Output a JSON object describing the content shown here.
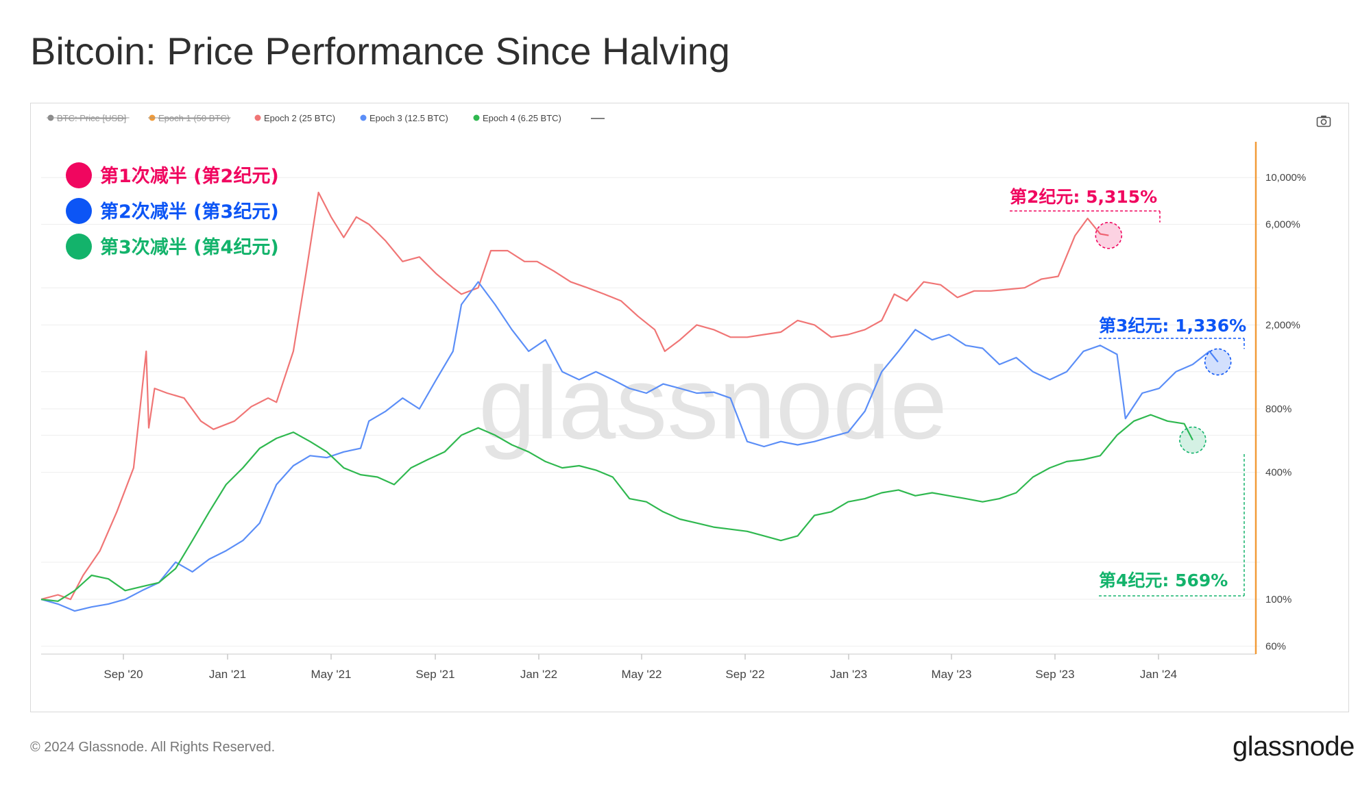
{
  "title": "Bitcoin: Price Performance Since Halving",
  "footer": {
    "copyright": "© 2024 Glassnode. All Rights Reserved.",
    "logo": "glassnode"
  },
  "watermark": "glassnode",
  "toolbar": {
    "camera_icon": "camera-icon"
  },
  "colors": {
    "epoch2": "#f07575",
    "epoch3": "#5b8ef7",
    "epoch4": "#2fb84f",
    "price": "#8a8a8a",
    "epoch1": "#f29b38",
    "highlight_pink": "#f0065f",
    "highlight_blue": "#0c55f5",
    "highlight_green": "#13b36b",
    "axis_orange": "#f29b38"
  },
  "chart_data": {
    "type": "line",
    "title": "Bitcoin: Price Performance Since Halving",
    "y_scale": "log",
    "ylim": [
      55,
      15000
    ],
    "xlabel": "",
    "ylabel": "",
    "x_ticks": [
      "Sep '20",
      "Jan '21",
      "May '21",
      "Sep '21",
      "Jan '22",
      "May '22",
      "Sep '22",
      "Jan '23",
      "May '23",
      "Sep '23",
      "Jan '24"
    ],
    "y_ticks": [
      {
        "value": 10000,
        "label": "10,000%"
      },
      {
        "value": 6000,
        "label": "6,000%"
      },
      {
        "value": 2000,
        "label": "2,000%"
      },
      {
        "value": 800,
        "label": "800%"
      },
      {
        "value": 400,
        "label": "400%"
      },
      {
        "value": 100,
        "label": "100%"
      },
      {
        "value": 60,
        "label": "60%"
      }
    ],
    "legend": [
      {
        "label": "BTC: Price [USD]",
        "hidden": true
      },
      {
        "label": "Epoch 1 (50 BTC)",
        "hidden": true
      },
      {
        "label": "Epoch 2 (25 BTC)",
        "hidden": false
      },
      {
        "label": "Epoch 3 (12.5 BTC)",
        "hidden": false
      },
      {
        "label": "Epoch 4 (6.25 BTC)",
        "hidden": false
      }
    ],
    "x_days_max": 1450,
    "series": [
      {
        "name": "Epoch 2 (25 BTC)",
        "points": [
          [
            0,
            100
          ],
          [
            20,
            105
          ],
          [
            35,
            100
          ],
          [
            50,
            130
          ],
          [
            70,
            170
          ],
          [
            90,
            260
          ],
          [
            110,
            420
          ],
          [
            125,
            1500
          ],
          [
            128,
            650
          ],
          [
            135,
            1000
          ],
          [
            150,
            950
          ],
          [
            170,
            900
          ],
          [
            190,
            700
          ],
          [
            205,
            640
          ],
          [
            230,
            700
          ],
          [
            250,
            820
          ],
          [
            270,
            900
          ],
          [
            280,
            860
          ],
          [
            300,
            1500
          ],
          [
            315,
            3500
          ],
          [
            330,
            8500
          ],
          [
            345,
            6500
          ],
          [
            360,
            5200
          ],
          [
            375,
            6500
          ],
          [
            390,
            6000
          ],
          [
            410,
            5000
          ],
          [
            430,
            4000
          ],
          [
            450,
            4200
          ],
          [
            470,
            3500
          ],
          [
            490,
            3000
          ],
          [
            500,
            2800
          ],
          [
            520,
            3000
          ],
          [
            535,
            4500
          ],
          [
            555,
            4500
          ],
          [
            575,
            4000
          ],
          [
            590,
            4000
          ],
          [
            610,
            3600
          ],
          [
            630,
            3200
          ],
          [
            650,
            3000
          ],
          [
            670,
            2800
          ],
          [
            690,
            2600
          ],
          [
            710,
            2200
          ],
          [
            730,
            1900
          ],
          [
            742,
            1500
          ],
          [
            760,
            1700
          ],
          [
            780,
            2000
          ],
          [
            800,
            1900
          ],
          [
            820,
            1750
          ],
          [
            840,
            1750
          ],
          [
            860,
            1800
          ],
          [
            880,
            1850
          ],
          [
            900,
            2100
          ],
          [
            920,
            2000
          ],
          [
            940,
            1750
          ],
          [
            960,
            1800
          ],
          [
            980,
            1900
          ],
          [
            1000,
            2100
          ],
          [
            1015,
            2800
          ],
          [
            1030,
            2600
          ],
          [
            1050,
            3200
          ],
          [
            1070,
            3100
          ],
          [
            1090,
            2700
          ],
          [
            1110,
            2900
          ],
          [
            1130,
            2900
          ],
          [
            1150,
            2950
          ],
          [
            1170,
            3000
          ],
          [
            1190,
            3300
          ],
          [
            1210,
            3400
          ],
          [
            1230,
            5300
          ],
          [
            1245,
            6400
          ],
          [
            1260,
            5400
          ],
          [
            1270,
            5315
          ]
        ]
      },
      {
        "name": "Epoch 3 (12.5 BTC)",
        "points": [
          [
            0,
            100
          ],
          [
            20,
            95
          ],
          [
            40,
            88
          ],
          [
            60,
            92
          ],
          [
            80,
            95
          ],
          [
            100,
            100
          ],
          [
            120,
            110
          ],
          [
            140,
            120
          ],
          [
            160,
            150
          ],
          [
            180,
            135
          ],
          [
            200,
            155
          ],
          [
            220,
            170
          ],
          [
            240,
            190
          ],
          [
            260,
            230
          ],
          [
            280,
            350
          ],
          [
            300,
            430
          ],
          [
            320,
            480
          ],
          [
            340,
            470
          ],
          [
            360,
            500
          ],
          [
            380,
            520
          ],
          [
            390,
            700
          ],
          [
            410,
            780
          ],
          [
            430,
            900
          ],
          [
            450,
            800
          ],
          [
            470,
            1100
          ],
          [
            490,
            1500
          ],
          [
            500,
            2500
          ],
          [
            520,
            3200
          ],
          [
            540,
            2500
          ],
          [
            560,
            1900
          ],
          [
            580,
            1500
          ],
          [
            600,
            1700
          ],
          [
            620,
            1200
          ],
          [
            640,
            1100
          ],
          [
            660,
            1200
          ],
          [
            680,
            1100
          ],
          [
            700,
            1000
          ],
          [
            720,
            950
          ],
          [
            740,
            1050
          ],
          [
            760,
            1000
          ],
          [
            780,
            950
          ],
          [
            800,
            960
          ],
          [
            820,
            900
          ],
          [
            840,
            560
          ],
          [
            860,
            530
          ],
          [
            880,
            560
          ],
          [
            900,
            540
          ],
          [
            920,
            560
          ],
          [
            940,
            590
          ],
          [
            960,
            620
          ],
          [
            980,
            780
          ],
          [
            1000,
            1200
          ],
          [
            1020,
            1500
          ],
          [
            1040,
            1900
          ],
          [
            1060,
            1700
          ],
          [
            1080,
            1800
          ],
          [
            1100,
            1600
          ],
          [
            1120,
            1550
          ],
          [
            1140,
            1300
          ],
          [
            1160,
            1400
          ],
          [
            1180,
            1200
          ],
          [
            1200,
            1100
          ],
          [
            1220,
            1200
          ],
          [
            1240,
            1500
          ],
          [
            1260,
            1600
          ],
          [
            1280,
            1450
          ],
          [
            1290,
            720
          ],
          [
            1310,
            950
          ],
          [
            1330,
            1000
          ],
          [
            1350,
            1200
          ],
          [
            1370,
            1300
          ],
          [
            1390,
            1500
          ],
          [
            1400,
            1336
          ]
        ]
      },
      {
        "name": "Epoch 4 (6.25 BTC)",
        "points": [
          [
            0,
            100
          ],
          [
            20,
            98
          ],
          [
            40,
            110
          ],
          [
            60,
            130
          ],
          [
            80,
            125
          ],
          [
            100,
            110
          ],
          [
            120,
            115
          ],
          [
            140,
            120
          ],
          [
            160,
            140
          ],
          [
            180,
            190
          ],
          [
            200,
            260
          ],
          [
            220,
            350
          ],
          [
            240,
            420
          ],
          [
            260,
            520
          ],
          [
            280,
            580
          ],
          [
            300,
            620
          ],
          [
            320,
            560
          ],
          [
            340,
            500
          ],
          [
            360,
            420
          ],
          [
            380,
            390
          ],
          [
            400,
            380
          ],
          [
            420,
            350
          ],
          [
            440,
            420
          ],
          [
            460,
            460
          ],
          [
            480,
            500
          ],
          [
            500,
            600
          ],
          [
            520,
            650
          ],
          [
            540,
            600
          ],
          [
            560,
            540
          ],
          [
            580,
            500
          ],
          [
            600,
            450
          ],
          [
            620,
            420
          ],
          [
            640,
            430
          ],
          [
            660,
            410
          ],
          [
            680,
            380
          ],
          [
            700,
            300
          ],
          [
            720,
            290
          ],
          [
            740,
            260
          ],
          [
            760,
            240
          ],
          [
            780,
            230
          ],
          [
            800,
            220
          ],
          [
            820,
            215
          ],
          [
            840,
            210
          ],
          [
            860,
            200
          ],
          [
            880,
            190
          ],
          [
            900,
            200
          ],
          [
            920,
            250
          ],
          [
            940,
            260
          ],
          [
            960,
            290
          ],
          [
            980,
            300
          ],
          [
            1000,
            320
          ],
          [
            1020,
            330
          ],
          [
            1040,
            310
          ],
          [
            1060,
            320
          ],
          [
            1080,
            310
          ],
          [
            1100,
            300
          ],
          [
            1120,
            290
          ],
          [
            1140,
            300
          ],
          [
            1160,
            320
          ],
          [
            1180,
            380
          ],
          [
            1200,
            420
          ],
          [
            1220,
            450
          ],
          [
            1240,
            460
          ],
          [
            1260,
            480
          ],
          [
            1280,
            600
          ],
          [
            1300,
            700
          ],
          [
            1320,
            750
          ],
          [
            1340,
            700
          ],
          [
            1360,
            680
          ],
          [
            1370,
            569
          ]
        ]
      }
    ],
    "annotations": [
      {
        "label": "第1次减半 (第2纪元)"
      },
      {
        "label": "第2次减半 (第3纪元)"
      },
      {
        "label": "第3次减半 (第4纪元)"
      },
      {
        "label": "第2纪元: 5,315%",
        "series": "Epoch 2 (25 BTC)",
        "value": 5315,
        "day": 1270
      },
      {
        "label": "第3纪元: 1,336%",
        "series": "Epoch 3 (12.5 BTC)",
        "value": 1336,
        "day": 1400
      },
      {
        "label": "第4纪元: 569%",
        "series": "Epoch 4 (6.25 BTC)",
        "value": 569,
        "day": 1370
      }
    ]
  }
}
